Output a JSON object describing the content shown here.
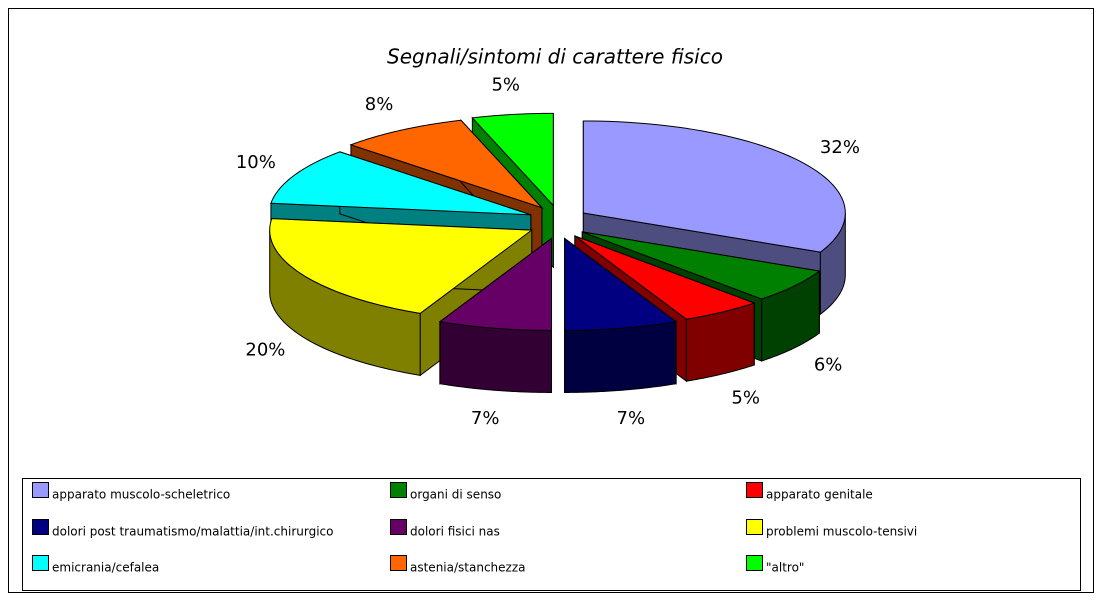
{
  "chart_data": {
    "type": "pie",
    "title": "Segnali/sintomi di carattere fisico",
    "categories": [
      "apparato muscolo-scheletrico",
      "organi di senso",
      "apparato genitale",
      "dolori post traumatismo/malattia/int.chirurgico",
      "dolori fisici nas",
      "problemi muscolo-tensivi",
      "emicrania/cefalea",
      "astenia/stanchezza",
      "\"altro\""
    ],
    "values": [
      32,
      6,
      5,
      7,
      7,
      20,
      10,
      8,
      5
    ],
    "value_labels": [
      "32%",
      "6%",
      "5%",
      "7%",
      "7%",
      "20%",
      "10%",
      "8%",
      "5%"
    ],
    "colors": [
      "#9999ff",
      "#008000",
      "#ff0000",
      "#000080",
      "#660066",
      "#ffff00",
      "#00ffff",
      "#ff6600",
      "#00ff00"
    ],
    "legend": "bottom"
  }
}
